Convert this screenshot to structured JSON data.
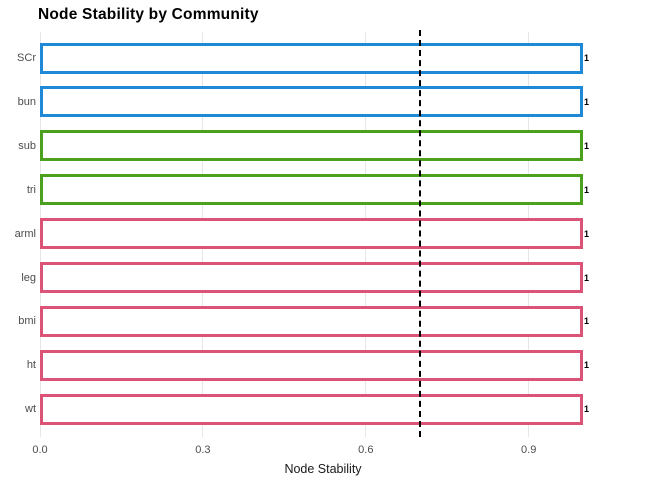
{
  "chart_data": {
    "type": "bar",
    "orientation": "horizontal",
    "title": "Node Stability by Community",
    "xlabel": "Node Stability",
    "ylabel": "",
    "categories": [
      "SCr",
      "bun",
      "sub",
      "tri",
      "arml",
      "leg",
      "bmi",
      "ht",
      "wt"
    ],
    "values": [
      1,
      1,
      1,
      1,
      1,
      1,
      1,
      1,
      1
    ],
    "bar_labels": [
      "1",
      "1",
      "1",
      "1",
      "1",
      "1",
      "1",
      "1",
      "1"
    ],
    "communities": [
      "blue",
      "blue",
      "green",
      "green",
      "pink",
      "pink",
      "pink",
      "pink",
      "pink"
    ],
    "community_colors": {
      "blue": "#1e89d6",
      "green": "#4ba01e",
      "pink": "#db5377"
    },
    "bar_fill": "#ffffff",
    "xlim": [
      0.0,
      1.05
    ],
    "xticks": [
      0.0,
      0.3,
      0.6,
      0.9
    ],
    "xtick_labels": [
      "0.0",
      "0.3",
      "0.6",
      "0.9"
    ],
    "reference_line": {
      "x": 0.7,
      "style": "dashed",
      "color": "#000000"
    },
    "grid": "vertical-major",
    "gridline_color": "#e6e6e6",
    "legend": "none",
    "panel_background": "#ffffff"
  }
}
